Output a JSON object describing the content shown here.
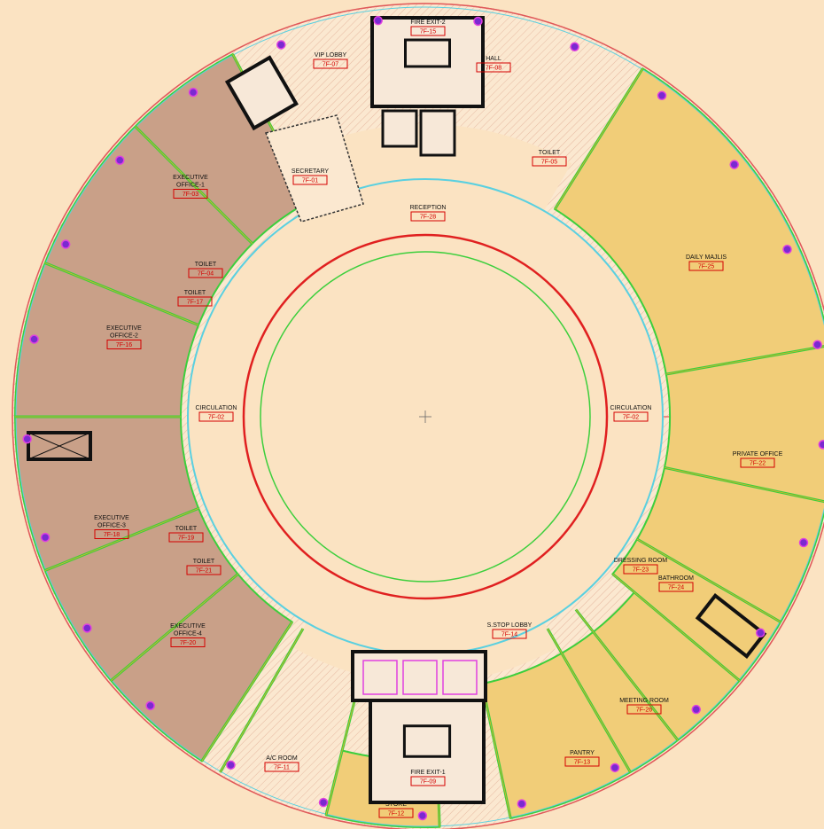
{
  "rooms": [
    {
      "lines": [
        "FIRE EXIT-2"
      ],
      "code": "7F-15"
    },
    {
      "lines": [
        "VIP LOBBY"
      ],
      "code": "7F-07"
    },
    {
      "lines": [
        "HALL"
      ],
      "code": "7F-08"
    },
    {
      "lines": [
        "TOILET"
      ],
      "code": "7F-05"
    },
    {
      "lines": [
        "SECRETARY"
      ],
      "code": "7F-01"
    },
    {
      "lines": [
        "RECEPTION"
      ],
      "code": "7F-28"
    },
    {
      "lines": [
        "EXECUTIVE",
        "OFFICE-1"
      ],
      "code": "7F-03"
    },
    {
      "lines": [
        "TOILET"
      ],
      "code": "7F-04"
    },
    {
      "lines": [
        "TOILET"
      ],
      "code": "7F-17"
    },
    {
      "lines": [
        "EXECUTIVE",
        "OFFICE-2"
      ],
      "code": "7F-16"
    },
    {
      "lines": [
        "CIRCULATION"
      ],
      "code": "7F-02"
    },
    {
      "lines": [
        "CIRCULATION"
      ],
      "code": "7F-02"
    },
    {
      "lines": [
        "DAILY MAJLIS"
      ],
      "code": "7F-25"
    },
    {
      "lines": [
        "PRIVATE OFFICE"
      ],
      "code": "7F-22"
    },
    {
      "lines": [
        "EXECUTIVE",
        "OFFICE-3"
      ],
      "code": "7F-18"
    },
    {
      "lines": [
        "TOILET"
      ],
      "code": "7F-19"
    },
    {
      "lines": [
        "TOILET"
      ],
      "code": "7F-21"
    },
    {
      "lines": [
        "EXECUTIVE",
        "OFFICE-4"
      ],
      "code": "7F-20"
    },
    {
      "lines": [
        "DRESSING ROOM"
      ],
      "code": "7F-23"
    },
    {
      "lines": [
        "BATHROOM"
      ],
      "code": "7F-24"
    },
    {
      "lines": [
        "MEETING ROOM"
      ],
      "code": "7F-26"
    },
    {
      "lines": [
        "S.STOP LOBBY"
      ],
      "code": "7F-14"
    },
    {
      "lines": [
        "PANTRY"
      ],
      "code": "7F-13"
    },
    {
      "lines": [
        "A/C ROOM"
      ],
      "code": "7F-11"
    },
    {
      "lines": [
        "FIRE EXIT-1"
      ],
      "code": "7F-09"
    },
    {
      "lines": [
        "STORE"
      ],
      "code": "7F-12"
    }
  ]
}
